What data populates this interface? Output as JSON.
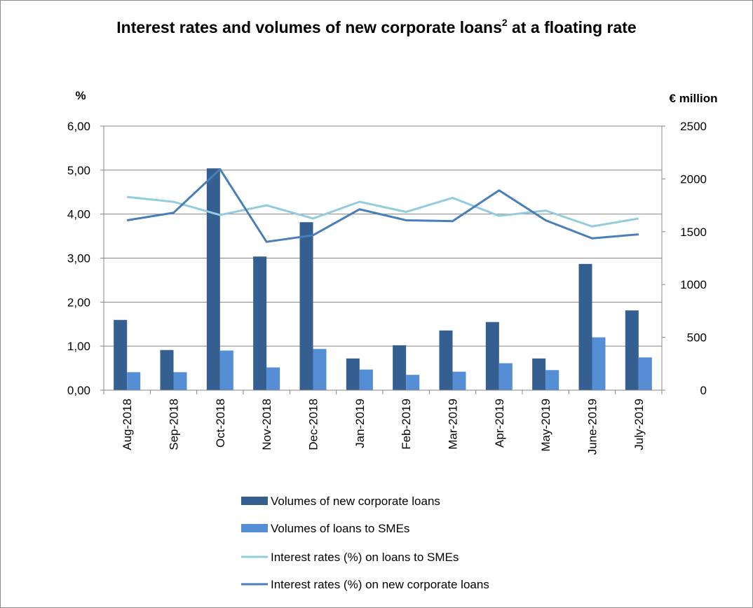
{
  "chart_data": {
    "type": "bar",
    "title": "Interest rates and volumes of new corporate loans",
    "title_superscript": "2",
    "title_suffix": " at a floating rate",
    "y_left_label": "%",
    "y_right_label": "€ million",
    "y_left_lim": [
      0,
      6
    ],
    "y_right_lim": [
      0,
      2500
    ],
    "y_left_ticks": [
      "0,00",
      "1,00",
      "2,00",
      "3,00",
      "4,00",
      "5,00",
      "6,00"
    ],
    "y_right_ticks": [
      "0",
      "500",
      "1000",
      "1500",
      "2000",
      "2500"
    ],
    "grid": true,
    "legend_position": "bottom",
    "categories": [
      "Aug-2018",
      "Sep-2018",
      "Oct-2018",
      "Nov-2018",
      "Dec-2018",
      "Jan-2019",
      "Feb-2019",
      "Mar-2019",
      "Apr-2019",
      "May-2019",
      "June-2019",
      "July-2019"
    ],
    "series": [
      {
        "name": "Volumes of new corporate loans",
        "type": "bar",
        "axis": "right",
        "color": "#355f91",
        "values": [
          665,
          380,
          2100,
          1265,
          1590,
          300,
          425,
          565,
          645,
          300,
          1195,
          755
        ]
      },
      {
        "name": "Volumes of loans to SMEs",
        "type": "bar",
        "axis": "right",
        "color": "#558ed5",
        "values": [
          170,
          170,
          375,
          215,
          390,
          195,
          145,
          175,
          255,
          190,
          500,
          310
        ]
      },
      {
        "name": "Interest rates (%) on loans to SMEs",
        "type": "line",
        "axis": "left",
        "color": "#93cddd",
        "values": [
          4.39,
          4.28,
          3.98,
          4.2,
          3.9,
          4.28,
          4.05,
          4.37,
          3.96,
          4.08,
          3.72,
          3.9
        ]
      },
      {
        "name": "Interest rates (%) on new corporate loans",
        "type": "line",
        "axis": "left",
        "color": "#4a7ebb",
        "values": [
          3.86,
          4.03,
          5.02,
          3.37,
          3.52,
          4.11,
          3.86,
          3.84,
          4.54,
          3.86,
          3.45,
          3.54
        ]
      }
    ]
  }
}
